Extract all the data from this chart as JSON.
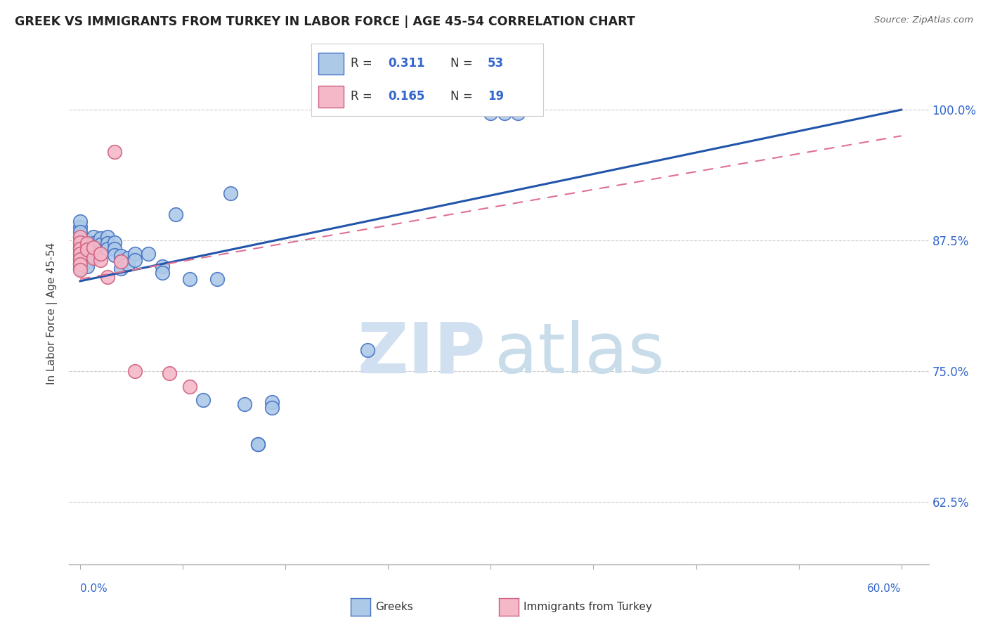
{
  "title": "GREEK VS IMMIGRANTS FROM TURKEY IN LABOR FORCE | AGE 45-54 CORRELATION CHART",
  "source": "Source: ZipAtlas.com",
  "ylabel": "In Labor Force | Age 45-54",
  "legend_blue_R": "0.311",
  "legend_blue_N": "53",
  "legend_pink_R": "0.165",
  "legend_pink_N": "19",
  "blue_color": "#adc9e8",
  "blue_edge_color": "#4472c4",
  "pink_color": "#f4b8c8",
  "pink_edge_color": "#d06080",
  "blue_line_color": "#2255aa",
  "pink_line_color": "#e07090",
  "background_color": "#ffffff",
  "xlim": [
    -0.008,
    0.62
  ],
  "ylim": [
    0.565,
    1.045
  ],
  "yticks": [
    0.625,
    0.75,
    0.875,
    1.0
  ],
  "ytick_labels": [
    "62.5%",
    "75.0%",
    "87.5%",
    "100.0%"
  ],
  "xtick_vals": [
    0.0,
    0.075,
    0.15,
    0.225,
    0.3,
    0.375,
    0.45,
    0.525,
    0.6
  ],
  "blue_line_x": [
    0.0,
    0.6
  ],
  "blue_line_y": [
    0.836,
    1.0
  ],
  "pink_line_x": [
    0.0,
    0.6
  ],
  "pink_line_y": [
    0.838,
    0.975
  ],
  "blue_scatter": [
    [
      0.0,
      0.878
    ],
    [
      0.0,
      0.873
    ],
    [
      0.0,
      0.868
    ],
    [
      0.0,
      0.863
    ],
    [
      0.0,
      0.858
    ],
    [
      0.0,
      0.853
    ],
    [
      0.0,
      0.848
    ],
    [
      0.0,
      0.888
    ],
    [
      0.0,
      0.893
    ],
    [
      0.0,
      0.883
    ],
    [
      0.005,
      0.875
    ],
    [
      0.005,
      0.87
    ],
    [
      0.005,
      0.865
    ],
    [
      0.005,
      0.86
    ],
    [
      0.005,
      0.855
    ],
    [
      0.005,
      0.85
    ],
    [
      0.01,
      0.878
    ],
    [
      0.01,
      0.872
    ],
    [
      0.01,
      0.866
    ],
    [
      0.01,
      0.86
    ],
    [
      0.015,
      0.877
    ],
    [
      0.015,
      0.871
    ],
    [
      0.015,
      0.865
    ],
    [
      0.02,
      0.878
    ],
    [
      0.02,
      0.872
    ],
    [
      0.02,
      0.867
    ],
    [
      0.025,
      0.873
    ],
    [
      0.025,
      0.867
    ],
    [
      0.025,
      0.861
    ],
    [
      0.03,
      0.86
    ],
    [
      0.03,
      0.855
    ],
    [
      0.03,
      0.848
    ],
    [
      0.035,
      0.858
    ],
    [
      0.035,
      0.852
    ],
    [
      0.04,
      0.862
    ],
    [
      0.04,
      0.856
    ],
    [
      0.05,
      0.862
    ],
    [
      0.06,
      0.85
    ],
    [
      0.06,
      0.844
    ],
    [
      0.07,
      0.9
    ],
    [
      0.08,
      0.838
    ],
    [
      0.09,
      0.722
    ],
    [
      0.1,
      0.838
    ],
    [
      0.11,
      0.92
    ],
    [
      0.12,
      0.718
    ],
    [
      0.13,
      0.68
    ],
    [
      0.13,
      0.68
    ],
    [
      0.14,
      0.72
    ],
    [
      0.14,
      0.715
    ],
    [
      0.21,
      0.77
    ],
    [
      0.3,
      0.997
    ],
    [
      0.31,
      0.997
    ],
    [
      0.32,
      0.997
    ]
  ],
  "pink_scatter": [
    [
      0.0,
      0.878
    ],
    [
      0.0,
      0.873
    ],
    [
      0.0,
      0.867
    ],
    [
      0.0,
      0.862
    ],
    [
      0.0,
      0.857
    ],
    [
      0.0,
      0.852
    ],
    [
      0.0,
      0.847
    ],
    [
      0.005,
      0.872
    ],
    [
      0.005,
      0.866
    ],
    [
      0.01,
      0.858
    ],
    [
      0.01,
      0.868
    ],
    [
      0.015,
      0.856
    ],
    [
      0.015,
      0.862
    ],
    [
      0.02,
      0.84
    ],
    [
      0.025,
      0.96
    ],
    [
      0.03,
      0.855
    ],
    [
      0.04,
      0.75
    ],
    [
      0.065,
      0.748
    ],
    [
      0.08,
      0.735
    ]
  ],
  "watermark_zip_color": "#d0e0f0",
  "watermark_atlas_color": "#c8dcea"
}
